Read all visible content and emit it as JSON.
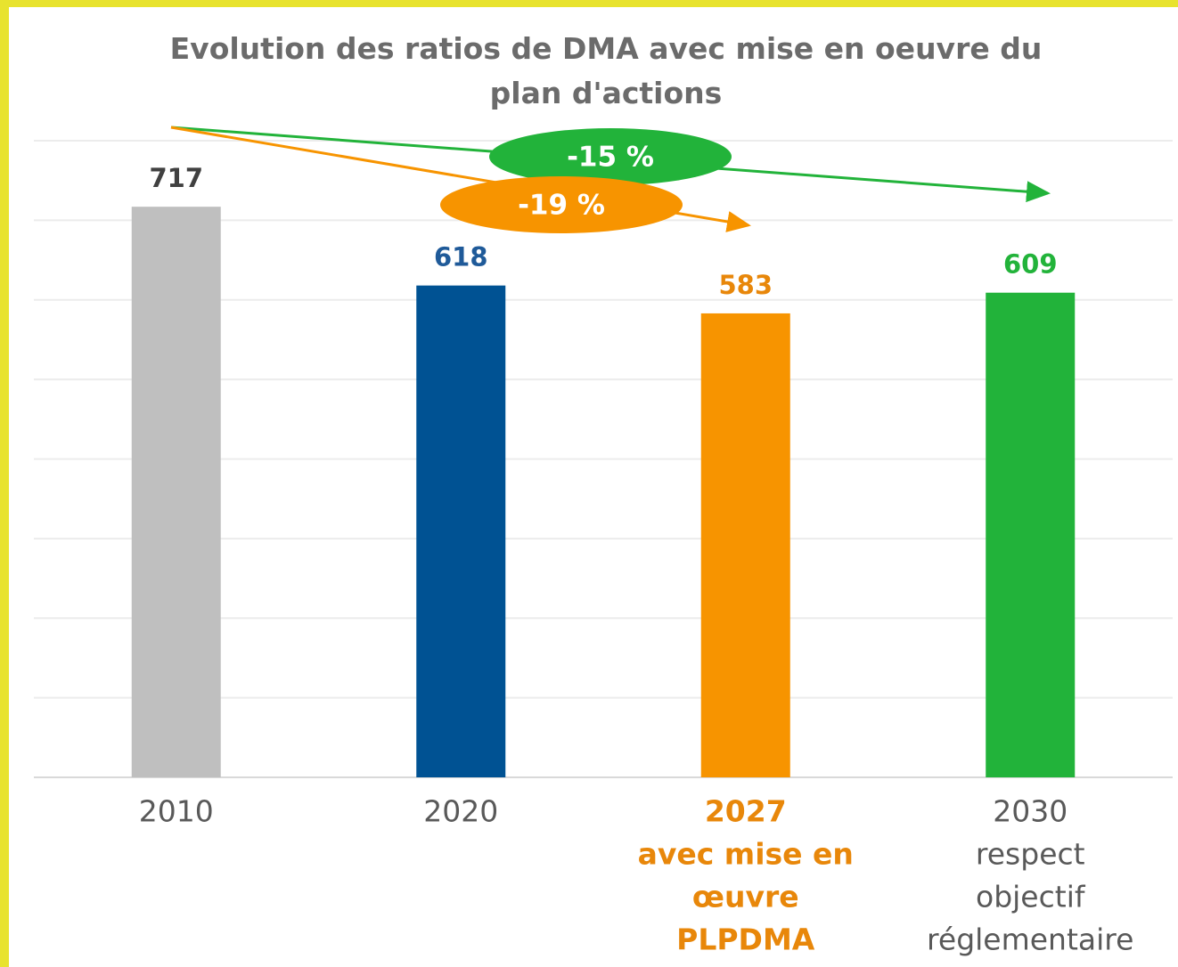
{
  "chart_data": {
    "type": "bar",
    "title": "Evolution des ratios de DMA avec mise en oeuvre du plan d'actions",
    "categories": [
      [
        "2010"
      ],
      [
        "2020"
      ],
      [
        "2027",
        "avec mise en",
        "œuvre",
        "PLPDMA"
      ],
      [
        "2030",
        "respect",
        "objectif",
        "réglementaire"
      ]
    ],
    "category_colors": [
      "#595959",
      "#595959",
      "#e8870a",
      "#595959"
    ],
    "values": [
      717,
      618,
      583,
      609
    ],
    "colors": [
      "#bfbfbf",
      "#005293",
      "#f79400",
      "#22b33a"
    ],
    "value_label_colors": [
      "#404040",
      "#1f5a99",
      "#e8870a",
      "#22b33a"
    ],
    "ylim": [
      0,
      800
    ],
    "yticks": [
      0,
      100,
      200,
      300,
      400,
      500,
      600,
      700,
      800
    ],
    "grid": true,
    "annotations": [
      {
        "text": "-15 %",
        "color": "#22b33a"
      },
      {
        "text": "-19 %",
        "color": "#f79400"
      }
    ]
  }
}
